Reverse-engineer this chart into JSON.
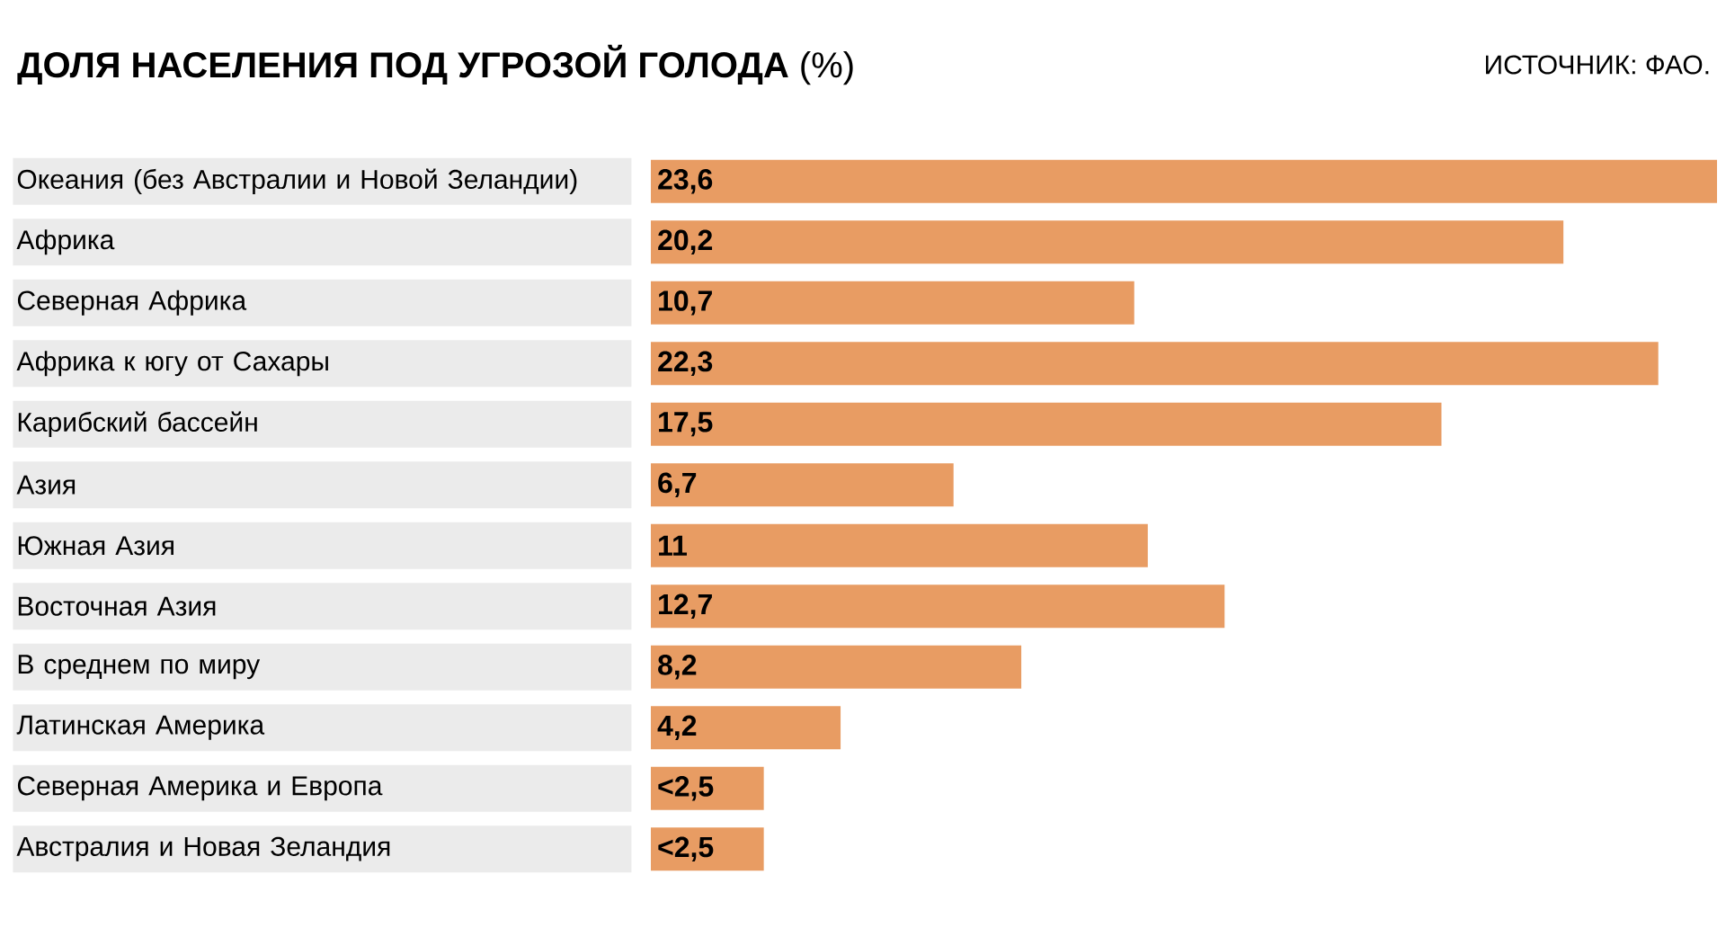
{
  "chart_data": {
    "type": "bar",
    "orientation": "horizontal",
    "title": "**ДОЛЯ НАСЕЛЕНИЯ ПОД УГРОЗОЙ ГОЛОДА** (%)",
    "annotations": [
      "ИСТОЧНИК: ФАО."
    ],
    "categories": [
      "Океания (без Австралии и Новой Зеландии)",
      "Африка",
      "Северная Африка",
      "Африка к югу от Сахары",
      "Карибский бассейн",
      "Азия",
      "Южная Азия",
      "Восточная Азия",
      "В среднем по миру",
      "Латинская Америка",
      "Северная Америка и Европа",
      "Австралия и Новая Зеландия"
    ],
    "values": [
      23.6,
      20.2,
      10.7,
      22.3,
      17.5,
      6.7,
      11,
      12.7,
      8.2,
      4.2,
      2.5,
      2.5
    ],
    "value_labels": [
      "23,6",
      "20,2",
      "10,7",
      "22,3",
      "17,5",
      "6,7",
      "11",
      "12,7",
      "8,2",
      "4,2",
      "<2,5",
      "<2,5"
    ],
    "color": "#e89c63",
    "xlim": [
      0,
      23.6
    ],
    "tick_labels": "y"
  }
}
